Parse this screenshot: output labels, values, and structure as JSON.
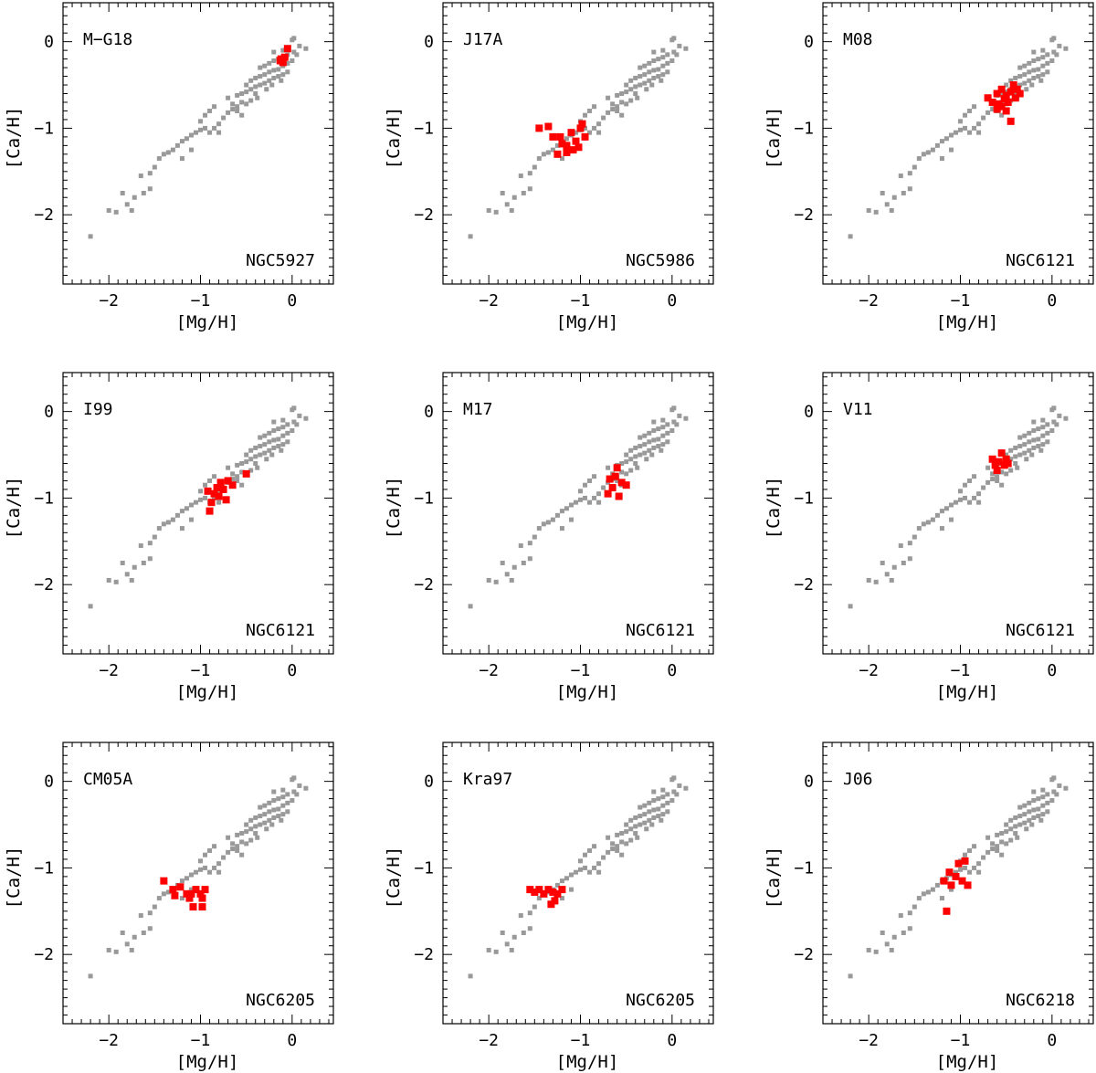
{
  "chart_data": {
    "type": "scatter",
    "xlabel": "[Mg/H]",
    "ylabel": "[Ca/H]",
    "xlim": [
      -2.5,
      0.45
    ],
    "ylim": [
      -2.8,
      0.45
    ],
    "xticks": [
      -2,
      -1,
      0
    ],
    "xtick_labels": [
      "−2",
      "−1",
      "0"
    ],
    "yticks": [
      -2,
      -1,
      0
    ],
    "ytick_labels": [
      "−2",
      "−1",
      "0"
    ],
    "colors": {
      "reference": "#999999",
      "cluster": "#ff0000",
      "axis": "#000000"
    },
    "reference_series": {
      "name": "reference",
      "points": [
        [
          -2.2,
          -2.25
        ],
        [
          -2.0,
          -1.95
        ],
        [
          -1.92,
          -1.97
        ],
        [
          -1.8,
          -1.88
        ],
        [
          -1.72,
          -1.8
        ],
        [
          -1.62,
          -1.75
        ],
        [
          -1.55,
          -1.7
        ],
        [
          -1.65,
          -1.55
        ],
        [
          -1.55,
          -1.52
        ],
        [
          -1.5,
          -1.45
        ],
        [
          -1.45,
          -1.35
        ],
        [
          -1.4,
          -1.3
        ],
        [
          -1.35,
          -1.28
        ],
        [
          -1.3,
          -1.25
        ],
        [
          -1.25,
          -1.2
        ],
        [
          -1.2,
          -1.15
        ],
        [
          -1.15,
          -1.12
        ],
        [
          -1.1,
          -1.08
        ],
        [
          -1.05,
          -1.05
        ],
        [
          -1.0,
          -1.02
        ],
        [
          -0.95,
          -1.0
        ],
        [
          -0.9,
          -1.05
        ],
        [
          -0.85,
          -1.0
        ],
        [
          -0.8,
          -0.95
        ],
        [
          -1.0,
          -0.92
        ],
        [
          -0.95,
          -0.85
        ],
        [
          -0.9,
          -0.8
        ],
        [
          -0.85,
          -0.75
        ],
        [
          -0.75,
          -0.88
        ],
        [
          -0.7,
          -0.82
        ],
        [
          -0.65,
          -0.78
        ],
        [
          -0.6,
          -0.75
        ],
        [
          -0.55,
          -0.7
        ],
        [
          -0.5,
          -0.72
        ],
        [
          -0.45,
          -0.68
        ],
        [
          -0.7,
          -0.65
        ],
        [
          -0.6,
          -0.62
        ],
        [
          -0.55,
          -0.6
        ],
        [
          -0.5,
          -0.58
        ],
        [
          -0.45,
          -0.55
        ],
        [
          -0.4,
          -0.52
        ],
        [
          -0.35,
          -0.5
        ],
        [
          -0.5,
          -0.5
        ],
        [
          -0.45,
          -0.45
        ],
        [
          -0.4,
          -0.42
        ],
        [
          -0.35,
          -0.4
        ],
        [
          -0.3,
          -0.38
        ],
        [
          -0.25,
          -0.35
        ],
        [
          -0.2,
          -0.33
        ],
        [
          -0.3,
          -0.48
        ],
        [
          -0.25,
          -0.45
        ],
        [
          -0.2,
          -0.42
        ],
        [
          -0.15,
          -0.4
        ],
        [
          -0.1,
          -0.38
        ],
        [
          -0.05,
          -0.35
        ],
        [
          -0.35,
          -0.3
        ],
        [
          -0.3,
          -0.28
        ],
        [
          -0.25,
          -0.25
        ],
        [
          -0.2,
          -0.22
        ],
        [
          -0.15,
          -0.2
        ],
        [
          -0.1,
          -0.18
        ],
        [
          -0.05,
          -0.15
        ],
        [
          -0.15,
          -0.32
        ],
        [
          -0.1,
          -0.28
        ],
        [
          -0.05,
          -0.25
        ],
        [
          0.0,
          -0.22
        ],
        [
          0.02,
          -0.12
        ],
        [
          0.05,
          -0.15
        ],
        [
          -0.2,
          -0.12
        ],
        [
          -0.1,
          -0.1
        ],
        [
          0.0,
          0.02
        ],
        [
          0.02,
          0.04
        ],
        [
          0.15,
          -0.08
        ],
        [
          0.08,
          -0.05
        ],
        [
          -0.6,
          -0.8
        ],
        [
          -0.65,
          -0.72
        ],
        [
          -0.4,
          -0.6
        ],
        [
          -0.38,
          -0.65
        ],
        [
          -0.28,
          -0.55
        ],
        [
          -0.22,
          -0.5
        ],
        [
          -0.12,
          -0.45
        ],
        [
          -1.75,
          -1.95
        ],
        [
          -1.85,
          -1.75
        ],
        [
          -1.2,
          -1.35
        ],
        [
          -1.1,
          -1.25
        ],
        [
          -0.8,
          -1.05
        ],
        [
          -0.55,
          -0.85
        ]
      ]
    },
    "panels": [
      {
        "method": "M−G18",
        "cluster": "NGC5927",
        "points": [
          [
            -0.12,
            -0.2
          ],
          [
            -0.08,
            -0.18
          ],
          [
            -0.1,
            -0.24
          ],
          [
            -0.05,
            -0.08
          ],
          [
            -0.13,
            -0.22
          ]
        ]
      },
      {
        "method": "J17A",
        "cluster": "NGC5986",
        "points": [
          [
            -1.45,
            -1.0
          ],
          [
            -1.35,
            -0.98
          ],
          [
            -1.3,
            -1.1
          ],
          [
            -1.22,
            -1.1
          ],
          [
            -1.2,
            -1.18
          ],
          [
            -1.15,
            -1.2
          ],
          [
            -1.1,
            -1.05
          ],
          [
            -1.05,
            -1.15
          ],
          [
            -1.0,
            -1.0
          ],
          [
            -0.98,
            -0.95
          ],
          [
            -0.95,
            -1.1
          ],
          [
            -1.08,
            -1.25
          ],
          [
            -1.15,
            -1.28
          ],
          [
            -1.25,
            -1.3
          ],
          [
            -1.02,
            -1.22
          ]
        ]
      },
      {
        "method": "M08",
        "cluster": "NGC6121",
        "points": [
          [
            -0.7,
            -0.65
          ],
          [
            -0.65,
            -0.7
          ],
          [
            -0.6,
            -0.6
          ],
          [
            -0.55,
            -0.55
          ],
          [
            -0.5,
            -0.62
          ],
          [
            -0.48,
            -0.7
          ],
          [
            -0.45,
            -0.58
          ],
          [
            -0.42,
            -0.5
          ],
          [
            -0.4,
            -0.65
          ],
          [
            -0.35,
            -0.6
          ],
          [
            -0.55,
            -0.75
          ],
          [
            -0.6,
            -0.78
          ],
          [
            -0.5,
            -0.8
          ],
          [
            -0.45,
            -0.92
          ],
          [
            -0.38,
            -0.55
          ],
          [
            -0.52,
            -0.66
          ],
          [
            -0.58,
            -0.72
          ]
        ]
      },
      {
        "method": "I99",
        "cluster": "NGC6121",
        "points": [
          [
            -0.9,
            -1.15
          ],
          [
            -0.88,
            -1.05
          ],
          [
            -0.85,
            -0.95
          ],
          [
            -0.82,
            -0.88
          ],
          [
            -0.8,
            -0.98
          ],
          [
            -0.78,
            -0.82
          ],
          [
            -0.75,
            -0.9
          ],
          [
            -0.72,
            -1.02
          ],
          [
            -0.7,
            -0.8
          ],
          [
            -0.65,
            -0.85
          ],
          [
            -0.5,
            -0.72
          ],
          [
            -0.92,
            -0.92
          ]
        ]
      },
      {
        "method": "M17",
        "cluster": "NGC6121",
        "points": [
          [
            -0.7,
            -0.95
          ],
          [
            -0.65,
            -0.88
          ],
          [
            -0.62,
            -0.75
          ],
          [
            -0.6,
            -0.65
          ],
          [
            -0.58,
            -0.98
          ],
          [
            -0.55,
            -0.82
          ],
          [
            -0.5,
            -0.85
          ],
          [
            -0.68,
            -0.78
          ]
        ]
      },
      {
        "method": "V11",
        "cluster": "NGC6121",
        "points": [
          [
            -0.65,
            -0.55
          ],
          [
            -0.62,
            -0.62
          ],
          [
            -0.58,
            -0.58
          ],
          [
            -0.55,
            -0.48
          ],
          [
            -0.52,
            -0.62
          ],
          [
            -0.5,
            -0.55
          ],
          [
            -0.48,
            -0.6
          ],
          [
            -0.6,
            -0.68
          ]
        ]
      },
      {
        "method": "CM05A",
        "cluster": "NGC6205",
        "points": [
          [
            -1.4,
            -1.15
          ],
          [
            -1.3,
            -1.25
          ],
          [
            -1.28,
            -1.32
          ],
          [
            -1.22,
            -1.22
          ],
          [
            -1.15,
            -1.3
          ],
          [
            -1.1,
            -1.3
          ],
          [
            -1.05,
            -1.25
          ],
          [
            -1.0,
            -1.3
          ],
          [
            -0.98,
            -1.35
          ],
          [
            -0.95,
            -1.25
          ],
          [
            -1.08,
            -1.45
          ],
          [
            -0.98,
            -1.45
          ],
          [
            -1.12,
            -1.35
          ]
        ]
      },
      {
        "method": "Kra97",
        "cluster": "NGC6205",
        "points": [
          [
            -1.55,
            -1.25
          ],
          [
            -1.5,
            -1.28
          ],
          [
            -1.45,
            -1.25
          ],
          [
            -1.4,
            -1.3
          ],
          [
            -1.35,
            -1.25
          ],
          [
            -1.3,
            -1.28
          ],
          [
            -1.25,
            -1.3
          ],
          [
            -1.2,
            -1.25
          ],
          [
            -1.32,
            -1.42
          ],
          [
            -1.28,
            -1.38
          ]
        ]
      },
      {
        "method": "J06",
        "cluster": "NGC6218",
        "points": [
          [
            -1.18,
            -1.15
          ],
          [
            -1.12,
            -1.05
          ],
          [
            -1.1,
            -1.2
          ],
          [
            -1.05,
            -1.1
          ],
          [
            -1.02,
            -0.95
          ],
          [
            -0.98,
            -1.15
          ],
          [
            -0.95,
            -0.92
          ],
          [
            -0.92,
            -1.2
          ],
          [
            -1.15,
            -1.5
          ]
        ]
      }
    ]
  }
}
